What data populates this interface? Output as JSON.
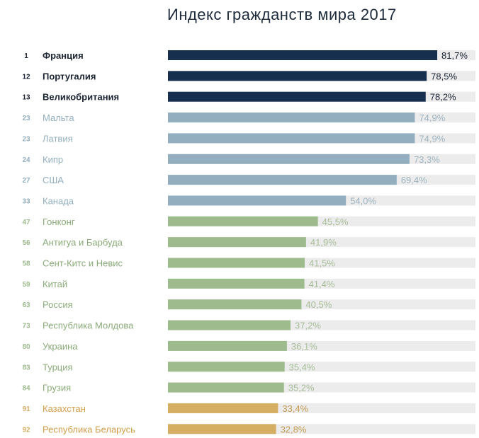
{
  "chart_data": {
    "type": "bar",
    "orientation": "horizontal",
    "title": "Индекс гражданств мира 2017",
    "xlim": [
      0,
      100
    ],
    "value_suffix": "%",
    "grid": false,
    "legend": "none",
    "colors": {
      "top": "#172f4f",
      "high": "#93afbf",
      "mid": "#9dbb8d",
      "low": "#d6ae63",
      "track": "#ececec"
    },
    "rows": [
      {
        "rank": "1",
        "country": "Франция",
        "value": 81.7,
        "label": "81,7%",
        "group": "top"
      },
      {
        "rank": "12",
        "country": "Португалия",
        "value": 78.5,
        "label": "78,5%",
        "group": "top"
      },
      {
        "rank": "13",
        "country": "Великобритания",
        "value": 78.2,
        "label": "78,2%",
        "group": "top"
      },
      {
        "rank": "23",
        "country": "Мальта",
        "value": 74.9,
        "label": "74,9%",
        "group": "high"
      },
      {
        "rank": "23",
        "country": "Латвия",
        "value": 74.9,
        "label": "74,9%",
        "group": "high"
      },
      {
        "rank": "24",
        "country": "Кипр",
        "value": 73.3,
        "label": "73,3%",
        "group": "high"
      },
      {
        "rank": "27",
        "country": "США",
        "value": 69.4,
        "label": "69,4%",
        "group": "high"
      },
      {
        "rank": "33",
        "country": "Канада",
        "value": 54.0,
        "label": "54,0%",
        "group": "high"
      },
      {
        "rank": "47",
        "country": "Гонконг",
        "value": 45.5,
        "label": "45,5%",
        "group": "mid"
      },
      {
        "rank": "56",
        "country": "Антигуа и Барбуда",
        "value": 41.9,
        "label": "41,9%",
        "group": "mid"
      },
      {
        "rank": "58",
        "country": "Сент-Китс и Невис",
        "value": 41.5,
        "label": "41,5%",
        "group": "mid"
      },
      {
        "rank": "59",
        "country": "Китай",
        "value": 41.4,
        "label": "41,4%",
        "group": "mid"
      },
      {
        "rank": "63",
        "country": "Россия",
        "value": 40.5,
        "label": "40,5%",
        "group": "mid"
      },
      {
        "rank": "73",
        "country": "Республика Молдова",
        "value": 37.2,
        "label": "37,2%",
        "group": "mid"
      },
      {
        "rank": "80",
        "country": "Украина",
        "value": 36.1,
        "label": "36,1%",
        "group": "mid"
      },
      {
        "rank": "83",
        "country": "Турция",
        "value": 35.4,
        "label": "35,4%",
        "group": "mid"
      },
      {
        "rank": "84",
        "country": "Грузия",
        "value": 35.2,
        "label": "35,2%",
        "group": "mid"
      },
      {
        "rank": "91",
        "country": "Казахстан",
        "value": 33.4,
        "label": "33,4%",
        "group": "low"
      },
      {
        "rank": "92",
        "country": "Республика Беларусь",
        "value": 32.8,
        "label": "32,8%",
        "group": "low"
      }
    ]
  }
}
